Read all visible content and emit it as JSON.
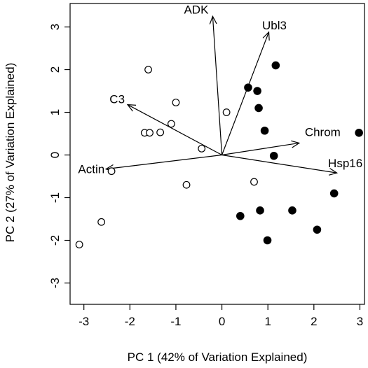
{
  "chart_data": {
    "type": "scatter",
    "title": "",
    "xlabel": "PC 1 (42% of Variation Explained)",
    "ylabel": "PC 2 (27% of Variation Explained)",
    "xlim": [
      -3.3,
      3.1
    ],
    "ylim": [
      -3.5,
      3.55
    ],
    "x_ticks": [
      -3,
      -2,
      -1,
      0,
      1,
      2,
      3
    ],
    "y_ticks": [
      -3,
      -2,
      -1,
      0,
      1,
      2,
      3
    ],
    "grid": false,
    "series": [
      {
        "marker": "open-circle",
        "color": "#000000",
        "points": [
          {
            "x": -1.6,
            "y": 2.0
          },
          {
            "x": -1.0,
            "y": 1.23
          },
          {
            "x": 0.1,
            "y": 1.0
          },
          {
            "x": -1.1,
            "y": 0.73
          },
          {
            "x": -1.68,
            "y": 0.52
          },
          {
            "x": -1.57,
            "y": 0.52
          },
          {
            "x": -1.34,
            "y": 0.53
          },
          {
            "x": -0.44,
            "y": 0.15
          },
          {
            "x": -2.4,
            "y": -0.38
          },
          {
            "x": -0.77,
            "y": -0.7
          },
          {
            "x": 0.7,
            "y": -0.63
          },
          {
            "x": -2.62,
            "y": -1.57
          },
          {
            "x": -3.1,
            "y": -2.1
          }
        ]
      },
      {
        "marker": "filled-circle",
        "color": "#000000",
        "points": [
          {
            "x": 1.17,
            "y": 2.1
          },
          {
            "x": 0.57,
            "y": 1.58
          },
          {
            "x": 0.77,
            "y": 1.5
          },
          {
            "x": 0.8,
            "y": 1.1
          },
          {
            "x": 0.93,
            "y": 0.57
          },
          {
            "x": 2.98,
            "y": 0.52
          },
          {
            "x": 1.13,
            "y": -0.02
          },
          {
            "x": 2.44,
            "y": -0.9
          },
          {
            "x": 0.83,
            "y": -1.3
          },
          {
            "x": 1.53,
            "y": -1.3
          },
          {
            "x": 0.4,
            "y": -1.43
          },
          {
            "x": 2.07,
            "y": -1.75
          },
          {
            "x": 0.99,
            "y": -2.0
          }
        ]
      }
    ],
    "loadings": [
      {
        "label": "ADK",
        "x": -0.2,
        "y": 3.25
      },
      {
        "label": "Ubl3",
        "x": 1.02,
        "y": 2.88
      },
      {
        "label": "C3",
        "x": -2.05,
        "y": 1.18
      },
      {
        "label": "Chrom",
        "x": 1.68,
        "y": 0.28
      },
      {
        "label": "Actin",
        "x": -2.52,
        "y": -0.33
      },
      {
        "label": "Hsp16",
        "x": 2.5,
        "y": -0.42
      }
    ]
  }
}
